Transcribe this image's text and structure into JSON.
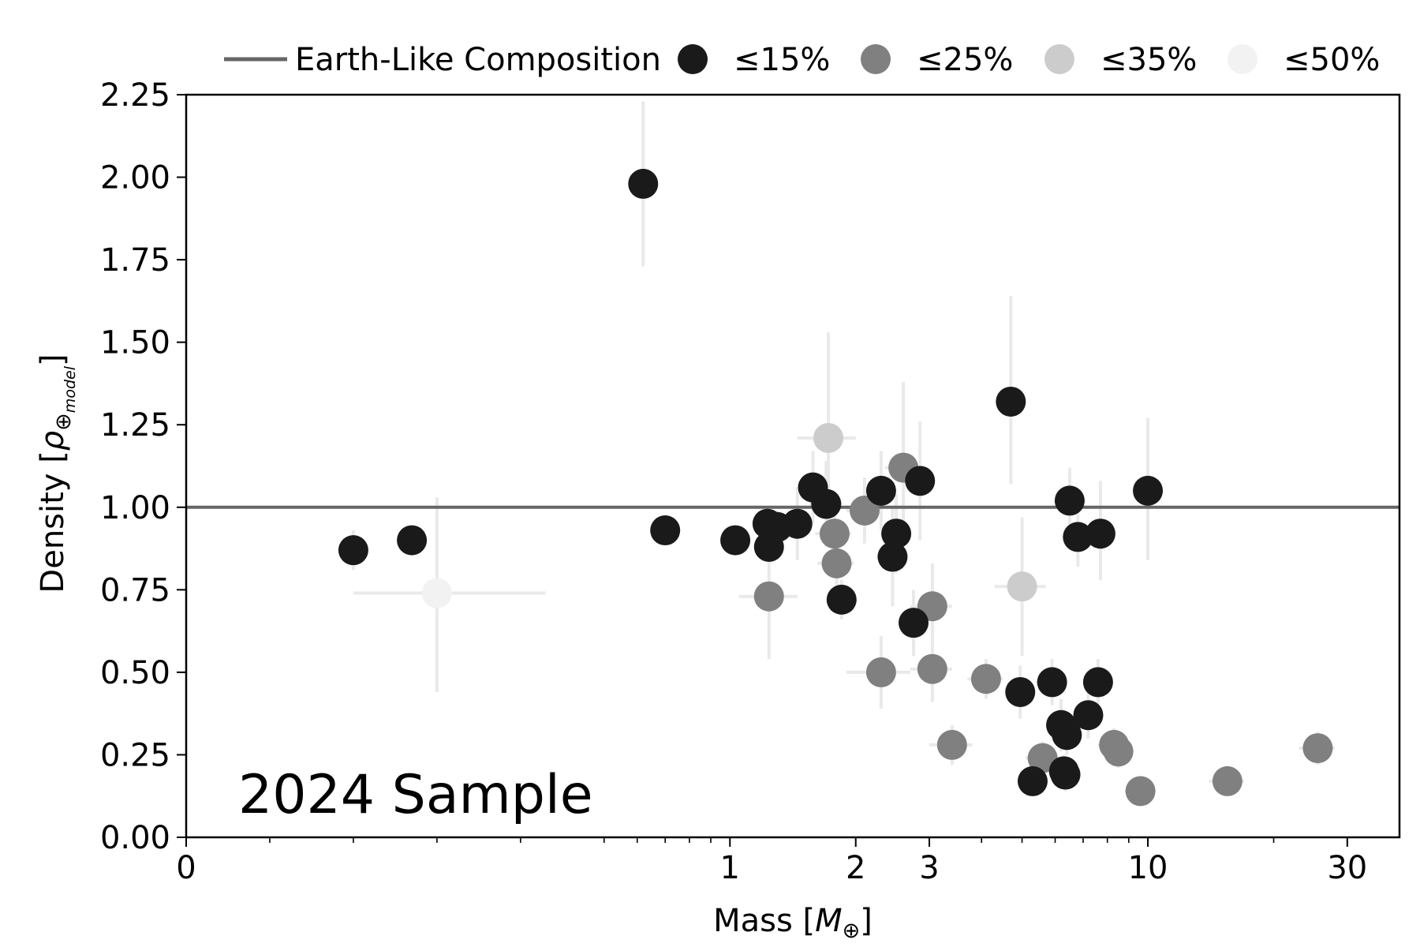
{
  "chart_data": {
    "type": "scatter",
    "annotation": "2024 Sample",
    "xlabel": {
      "text": "Mass [",
      "symbol": "M",
      "sub": "⊕",
      "close": "]"
    },
    "ylabel": {
      "text": "Density [",
      "symbol": "ρ",
      "sub": "⊕",
      "subsub": "model",
      "close": "]"
    },
    "x_scale": "symlog",
    "x_linthresh": 0.5,
    "xlim": [
      0,
      40
    ],
    "ylim": [
      0,
      2.25
    ],
    "x_ticks": [
      {
        "value": 0,
        "label": "0"
      },
      {
        "value": 1,
        "label": "1"
      },
      {
        "value": 2,
        "label": "2"
      },
      {
        "value": 3,
        "label": "3"
      },
      {
        "value": 10,
        "label": "10"
      },
      {
        "value": 30,
        "label": "30"
      }
    ],
    "y_ticks": [
      {
        "value": 0,
        "label": "0.00"
      },
      {
        "value": 0.25,
        "label": "0.25"
      },
      {
        "value": 0.5,
        "label": "0.50"
      },
      {
        "value": 0.75,
        "label": "0.75"
      },
      {
        "value": 1.0,
        "label": "1.00"
      },
      {
        "value": 1.25,
        "label": "1.25"
      },
      {
        "value": 1.5,
        "label": "1.50"
      },
      {
        "value": 1.75,
        "label": "1.75"
      },
      {
        "value": 2.0,
        "label": "2.00"
      },
      {
        "value": 2.25,
        "label": "2.25"
      }
    ],
    "reference_line": {
      "name": "Earth-Like Composition",
      "y": 1.0,
      "color": "#666666"
    },
    "legend_placement": "top-outside",
    "error_bar_color": "#e9e9e9",
    "series": [
      {
        "name": "≤15%",
        "color": "#1a1a1a",
        "points": [
          {
            "x": 0.62,
            "y": 1.98,
            "xlo": 0.62,
            "xhi": 0.62,
            "ylo": 1.73,
            "yhi": 2.23
          },
          {
            "x": 0.2,
            "y": 0.87,
            "xlo": 0.2,
            "xhi": 0.2,
            "ylo": 0.81,
            "yhi": 0.93
          },
          {
            "x": 0.27,
            "y": 0.9,
            "xlo": 0.27,
            "xhi": 0.27,
            "ylo": 0.86,
            "yhi": 0.94
          },
          {
            "x": 0.7,
            "y": 0.93,
            "xlo": 0.7,
            "xhi": 0.7,
            "ylo": 0.89,
            "yhi": 0.97
          },
          {
            "x": 1.03,
            "y": 0.9,
            "xlo": 0.96,
            "xhi": 1.1,
            "ylo": 0.86,
            "yhi": 0.94
          },
          {
            "x": 1.23,
            "y": 0.95,
            "xlo": 1.15,
            "xhi": 1.31,
            "ylo": 0.9,
            "yhi": 1.0
          },
          {
            "x": 1.24,
            "y": 0.88,
            "xlo": 1.16,
            "xhi": 1.32,
            "ylo": 0.83,
            "yhi": 0.93
          },
          {
            "x": 1.3,
            "y": 0.94,
            "xlo": 1.22,
            "xhi": 1.38,
            "ylo": 0.89,
            "yhi": 0.99
          },
          {
            "x": 1.45,
            "y": 0.95,
            "xlo": 1.33,
            "xhi": 1.57,
            "ylo": 0.84,
            "yhi": 1.06
          },
          {
            "x": 1.58,
            "y": 1.06,
            "xlo": 1.46,
            "xhi": 1.7,
            "ylo": 0.95,
            "yhi": 1.17
          },
          {
            "x": 1.7,
            "y": 1.01,
            "xlo": 1.55,
            "xhi": 1.85,
            "ylo": 0.88,
            "yhi": 1.14
          },
          {
            "x": 1.85,
            "y": 0.72,
            "xlo": 1.75,
            "xhi": 1.95,
            "ylo": 0.66,
            "yhi": 0.78
          },
          {
            "x": 2.3,
            "y": 1.05,
            "xlo": 2.1,
            "xhi": 2.5,
            "ylo": 0.93,
            "yhi": 1.17
          },
          {
            "x": 2.5,
            "y": 0.92,
            "xlo": 2.3,
            "xhi": 2.7,
            "ylo": 0.8,
            "yhi": 1.04
          },
          {
            "x": 2.45,
            "y": 0.85,
            "xlo": 2.25,
            "xhi": 2.65,
            "ylo": 0.7,
            "yhi": 1.0
          },
          {
            "x": 2.75,
            "y": 0.65,
            "xlo": 2.55,
            "xhi": 2.95,
            "ylo": 0.55,
            "yhi": 0.75
          },
          {
            "x": 2.85,
            "y": 1.08,
            "xlo": 2.65,
            "xhi": 3.05,
            "ylo": 0.9,
            "yhi": 1.26
          },
          {
            "x": 4.7,
            "y": 1.32,
            "xlo": 4.4,
            "xhi": 5.0,
            "ylo": 1.07,
            "yhi": 1.64
          },
          {
            "x": 6.5,
            "y": 1.02,
            "xlo": 6.1,
            "xhi": 6.9,
            "ylo": 0.92,
            "yhi": 1.12
          },
          {
            "x": 6.8,
            "y": 0.91,
            "xlo": 6.3,
            "xhi": 7.3,
            "ylo": 0.82,
            "yhi": 1.0
          },
          {
            "x": 7.7,
            "y": 0.92,
            "xlo": 7.2,
            "xhi": 8.2,
            "ylo": 0.78,
            "yhi": 1.08
          },
          {
            "x": 10.0,
            "y": 1.05,
            "xlo": 9.2,
            "xhi": 10.8,
            "ylo": 0.84,
            "yhi": 1.27
          },
          {
            "x": 4.95,
            "y": 0.44,
            "xlo": 4.6,
            "xhi": 5.3,
            "ylo": 0.36,
            "yhi": 0.52
          },
          {
            "x": 5.9,
            "y": 0.47,
            "xlo": 5.4,
            "xhi": 6.4,
            "ylo": 0.4,
            "yhi": 0.54
          },
          {
            "x": 7.6,
            "y": 0.47,
            "xlo": 7.0,
            "xhi": 8.2,
            "ylo": 0.4,
            "yhi": 0.54
          },
          {
            "x": 7.2,
            "y": 0.37,
            "xlo": 6.7,
            "xhi": 7.7,
            "ylo": 0.3,
            "yhi": 0.44
          },
          {
            "x": 6.2,
            "y": 0.34,
            "xlo": 5.7,
            "xhi": 6.7,
            "ylo": 0.26,
            "yhi": 0.42
          },
          {
            "x": 6.4,
            "y": 0.31,
            "xlo": 5.9,
            "xhi": 6.9,
            "ylo": 0.25,
            "yhi": 0.37
          },
          {
            "x": 6.3,
            "y": 0.2,
            "xlo": 5.8,
            "xhi": 6.8,
            "ylo": 0.15,
            "yhi": 0.25
          },
          {
            "x": 6.35,
            "y": 0.19,
            "xlo": 5.85,
            "xhi": 6.85,
            "ylo": 0.14,
            "yhi": 0.24
          },
          {
            "x": 5.3,
            "y": 0.17,
            "xlo": 4.9,
            "xhi": 5.7,
            "ylo": 0.13,
            "yhi": 0.21
          }
        ]
      },
      {
        "name": "≤25%",
        "color": "#808080",
        "points": [
          {
            "x": 1.24,
            "y": 0.73,
            "xlo": 1.05,
            "xhi": 1.45,
            "ylo": 0.54,
            "yhi": 0.9
          },
          {
            "x": 1.78,
            "y": 0.92,
            "xlo": 1.6,
            "xhi": 1.95,
            "ylo": 0.81,
            "yhi": 1.03
          },
          {
            "x": 1.8,
            "y": 0.83,
            "xlo": 1.62,
            "xhi": 1.98,
            "ylo": 0.72,
            "yhi": 0.94
          },
          {
            "x": 2.1,
            "y": 0.99,
            "xlo": 1.9,
            "xhi": 2.3,
            "ylo": 0.89,
            "yhi": 1.09
          },
          {
            "x": 2.6,
            "y": 1.12,
            "xlo": 2.35,
            "xhi": 2.85,
            "ylo": 0.94,
            "yhi": 1.38
          },
          {
            "x": 2.3,
            "y": 0.5,
            "xlo": 1.9,
            "xhi": 2.7,
            "ylo": 0.39,
            "yhi": 0.61
          },
          {
            "x": 3.05,
            "y": 0.7,
            "xlo": 2.7,
            "xhi": 3.4,
            "ylo": 0.58,
            "yhi": 0.83
          },
          {
            "x": 3.05,
            "y": 0.51,
            "xlo": 2.7,
            "xhi": 3.4,
            "ylo": 0.41,
            "yhi": 0.61
          },
          {
            "x": 3.4,
            "y": 0.28,
            "xlo": 3.0,
            "xhi": 3.8,
            "ylo": 0.22,
            "yhi": 0.34
          },
          {
            "x": 4.1,
            "y": 0.48,
            "xlo": 3.7,
            "xhi": 4.5,
            "ylo": 0.42,
            "yhi": 0.54
          },
          {
            "x": 5.6,
            "y": 0.24,
            "xlo": 5.1,
            "xhi": 6.1,
            "ylo": 0.19,
            "yhi": 0.29
          },
          {
            "x": 8.3,
            "y": 0.28,
            "xlo": 7.6,
            "xhi": 9.0,
            "ylo": 0.23,
            "yhi": 0.33
          },
          {
            "x": 8.5,
            "y": 0.26,
            "xlo": 7.8,
            "xhi": 9.2,
            "ylo": 0.21,
            "yhi": 0.31
          },
          {
            "x": 9.6,
            "y": 0.14,
            "xlo": 8.8,
            "xhi": 10.4,
            "ylo": 0.1,
            "yhi": 0.18
          },
          {
            "x": 15.5,
            "y": 0.17,
            "xlo": 14.0,
            "xhi": 17.0,
            "ylo": 0.13,
            "yhi": 0.21
          },
          {
            "x": 25.5,
            "y": 0.27,
            "xlo": 23.0,
            "xhi": 28.0,
            "ylo": 0.22,
            "yhi": 0.32
          }
        ]
      },
      {
        "name": "≤35%",
        "color": "#cccccc",
        "points": [
          {
            "x": 1.72,
            "y": 1.21,
            "xlo": 1.45,
            "xhi": 2.0,
            "ylo": 0.9,
            "yhi": 1.53
          },
          {
            "x": 5.0,
            "y": 0.76,
            "xlo": 4.3,
            "xhi": 5.7,
            "ylo": 0.55,
            "yhi": 0.97
          }
        ]
      },
      {
        "name": "≤50%",
        "color": "#f2f2f2",
        "points": [
          {
            "x": 0.3,
            "y": 0.74,
            "xlo": 0.2,
            "xhi": 0.43,
            "ylo": 0.44,
            "yhi": 1.03
          }
        ]
      }
    ]
  }
}
